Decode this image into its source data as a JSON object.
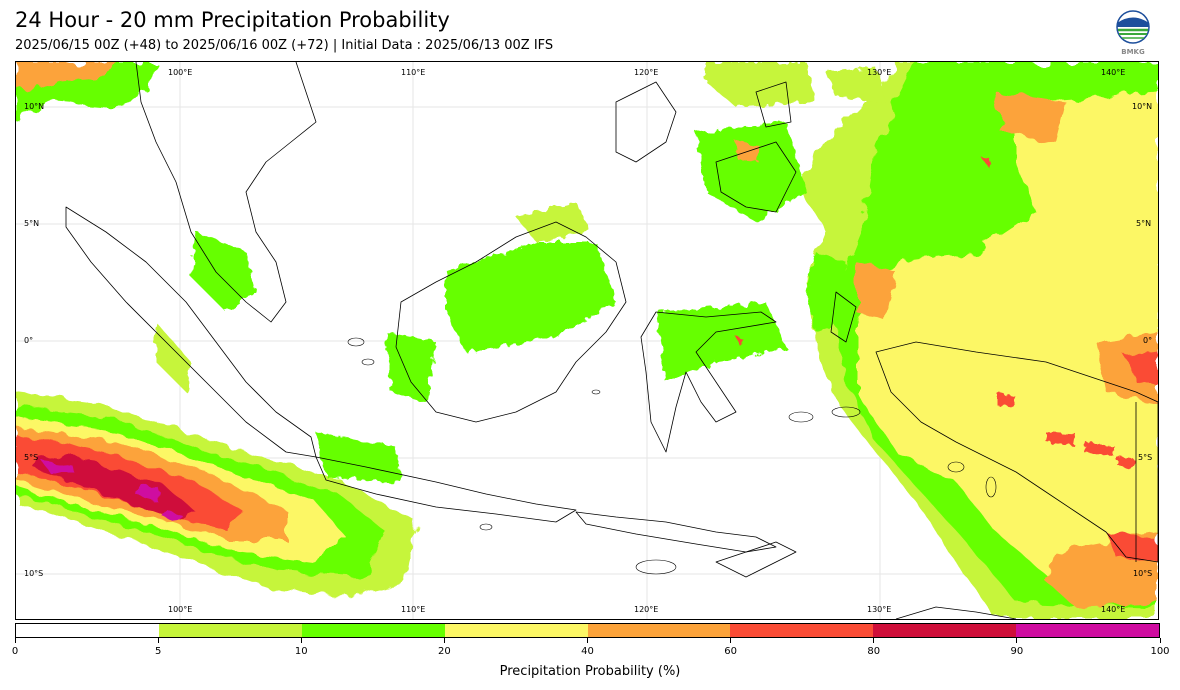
{
  "header": {
    "title": "24 Hour - 20 mm Precipitation Probability",
    "subtitle": "2025/06/15 00Z (+48) to 2025/06/16 00Z (+72) | Initial Data : 2025/06/13 00Z IFS",
    "logo_text": "BMKG"
  },
  "map": {
    "region": "Indonesia",
    "lon_range": [
      94,
      143
    ],
    "lat_range": [
      -12,
      12
    ],
    "gridlines": true,
    "lon_labels": [
      "100°E",
      "110°E",
      "120°E",
      "130°E",
      "140°E"
    ],
    "lat_labels": [
      "10°N",
      "5°N",
      "0°",
      "5°S",
      "10°S"
    ],
    "colors": {
      "land_outline": "#000000",
      "gridline": "#dddddd"
    }
  },
  "colorbar": {
    "label": "Precipitation Probability (%)",
    "ticks": [
      "0",
      "5",
      "10",
      "20",
      "40",
      "60",
      "80",
      "90",
      "100"
    ],
    "bins": [
      {
        "from": 0,
        "to": 5,
        "color": "#ffffff"
      },
      {
        "from": 5,
        "to": 10,
        "color": "#c6f53a"
      },
      {
        "from": 10,
        "to": 20,
        "color": "#66ff00"
      },
      {
        "from": 20,
        "to": 40,
        "color": "#fcf765"
      },
      {
        "from": 40,
        "to": 60,
        "color": "#fca33a"
      },
      {
        "from": 60,
        "to": 80,
        "color": "#fa4c35"
      },
      {
        "from": 80,
        "to": 90,
        "color": "#cf0f3a"
      },
      {
        "from": 90,
        "to": 100,
        "color": "#cf0ca0"
      }
    ]
  }
}
